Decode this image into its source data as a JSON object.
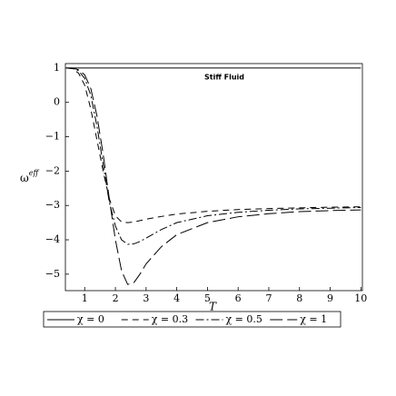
{
  "chart_data": {
    "type": "line",
    "annotation": "Stiff Fluid",
    "xlabel": "T",
    "ylabel": {
      "base": "ω",
      "sup": "eff"
    },
    "x": [
      0.4,
      0.6,
      0.8,
      1,
      1.2,
      1.4,
      1.6,
      1.8,
      2,
      2.2,
      2.4,
      2.6,
      2.8,
      3,
      3.5,
      4,
      5,
      6,
      7,
      8,
      9,
      10
    ],
    "series": [
      {
        "name": "χ = 0",
        "color": "#000000",
        "dash": "none",
        "values": [
          1,
          1,
          1,
          1,
          1,
          1,
          1,
          1,
          1,
          1,
          1,
          1,
          1,
          1,
          1,
          1,
          1,
          1,
          1,
          1,
          1,
          1
        ]
      },
      {
        "name": "χ = 0.3",
        "color": "#000000",
        "dash": "7 5",
        "values": [
          1,
          0.98,
          0.85,
          0.5,
          -0.2,
          -1.1,
          -2.0,
          -2.8,
          -3.3,
          -3.48,
          -3.5,
          -3.48,
          -3.44,
          -3.4,
          -3.32,
          -3.25,
          -3.17,
          -3.12,
          -3.09,
          -3.07,
          -3.05,
          -3.04
        ]
      },
      {
        "name": "χ = 0.5",
        "color": "#000000",
        "dash": "9 3 2 3",
        "values": [
          1,
          0.99,
          0.92,
          0.7,
          0.2,
          -0.7,
          -1.8,
          -2.9,
          -3.6,
          -4.0,
          -4.13,
          -4.12,
          -4.05,
          -3.95,
          -3.7,
          -3.5,
          -3.3,
          -3.2,
          -3.14,
          -3.1,
          -3.08,
          -3.06
        ]
      },
      {
        "name": "χ = 1",
        "color": "#000000",
        "dash": "14 5",
        "values": [
          1,
          1,
          0.95,
          0.8,
          0.4,
          -0.4,
          -1.5,
          -2.8,
          -4.0,
          -4.9,
          -5.3,
          -5.25,
          -5.0,
          -4.7,
          -4.2,
          -3.85,
          -3.5,
          -3.33,
          -3.24,
          -3.18,
          -3.15,
          -3.13
        ]
      }
    ],
    "xlim": [
      0.37,
      10.05
    ],
    "ylim": [
      -5.48,
      1.13
    ],
    "xticks": [
      1,
      2,
      3,
      4,
      5,
      6,
      7,
      8,
      9,
      10
    ],
    "yticks": [
      1,
      0,
      {
        "value": -1,
        "label": "−1"
      },
      {
        "value": -2,
        "label": "−2"
      },
      {
        "value": -3,
        "label": "−3"
      },
      {
        "value": -4,
        "label": "−4"
      },
      {
        "value": -5,
        "label": "−5"
      }
    ],
    "grid": false,
    "legend": "bottom"
  }
}
